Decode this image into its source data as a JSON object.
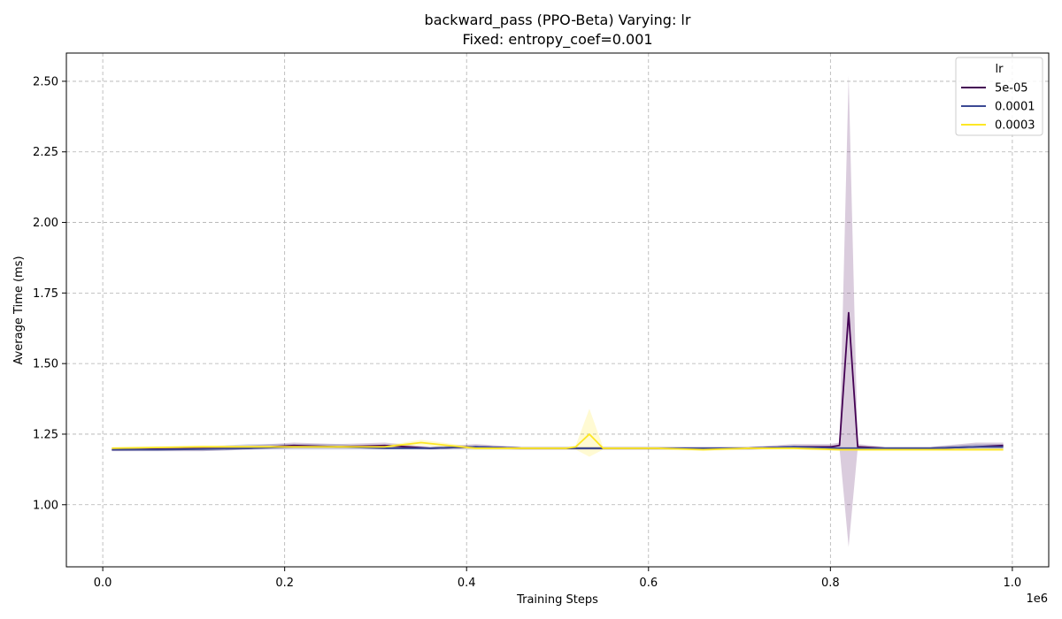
{
  "chart_data": {
    "type": "line",
    "title_line1": "backward_pass (PPO-Beta) Varying: lr",
    "title_line2": "Fixed: entropy_coef=0.001",
    "xlabel": "Training Steps",
    "ylabel": "Average Time (ms)",
    "x_multiplier_label": "1e6",
    "xlim": [
      -0.04,
      1.04
    ],
    "ylim": [
      0.78,
      2.6
    ],
    "x_ticks": [
      0.0,
      0.2,
      0.4,
      0.6,
      0.8,
      1.0
    ],
    "x_tick_labels": [
      "0.0",
      "0.2",
      "0.4",
      "0.6",
      "0.8",
      "1.0"
    ],
    "y_ticks": [
      1.0,
      1.25,
      1.5,
      1.75,
      2.0,
      2.25,
      2.5
    ],
    "y_tick_labels": [
      "1.00",
      "1.25",
      "1.50",
      "1.75",
      "2.00",
      "2.25",
      "2.50"
    ],
    "grid": true,
    "legend": {
      "title": "lr",
      "placement": "top-right"
    },
    "series": [
      {
        "name": "5e-05",
        "color": "#440154",
        "band_color": "#440154",
        "x": [
          0.01,
          0.06,
          0.11,
          0.16,
          0.21,
          0.26,
          0.31,
          0.36,
          0.41,
          0.46,
          0.51,
          0.56,
          0.61,
          0.66,
          0.71,
          0.76,
          0.8,
          0.81,
          0.82,
          0.83,
          0.86,
          0.91,
          0.96,
          0.99
        ],
        "y": [
          1.195,
          1.197,
          1.199,
          1.2,
          1.21,
          1.205,
          1.21,
          1.2,
          1.205,
          1.2,
          1.2,
          1.2,
          1.2,
          1.2,
          1.2,
          1.205,
          1.205,
          1.21,
          1.68,
          1.205,
          1.2,
          1.2,
          1.205,
          1.21
        ],
        "band_lower": [
          1.19,
          1.19,
          1.19,
          1.195,
          1.2,
          1.2,
          1.2,
          1.195,
          1.2,
          1.195,
          1.195,
          1.195,
          1.195,
          1.195,
          1.195,
          1.2,
          1.2,
          1.2,
          0.85,
          1.2,
          1.195,
          1.195,
          1.2,
          1.2
        ],
        "band_upper": [
          1.2,
          1.205,
          1.205,
          1.21,
          1.22,
          1.215,
          1.22,
          1.205,
          1.215,
          1.205,
          1.205,
          1.205,
          1.205,
          1.205,
          1.205,
          1.215,
          1.215,
          1.22,
          2.52,
          1.215,
          1.205,
          1.205,
          1.22,
          1.22
        ]
      },
      {
        "name": "0.0001",
        "color": "#3b4994",
        "band_color": "#3b4994",
        "x": [
          0.01,
          0.06,
          0.11,
          0.16,
          0.21,
          0.26,
          0.31,
          0.36,
          0.41,
          0.46,
          0.51,
          0.56,
          0.61,
          0.66,
          0.71,
          0.76,
          0.81,
          0.86,
          0.91,
          0.96,
          0.99
        ],
        "y": [
          1.195,
          1.195,
          1.197,
          1.2,
          1.205,
          1.205,
          1.2,
          1.2,
          1.205,
          1.2,
          1.2,
          1.2,
          1.2,
          1.2,
          1.2,
          1.205,
          1.2,
          1.2,
          1.2,
          1.205,
          1.205
        ],
        "band_lower": [
          1.19,
          1.19,
          1.19,
          1.195,
          1.195,
          1.195,
          1.195,
          1.195,
          1.195,
          1.195,
          1.195,
          1.195,
          1.195,
          1.195,
          1.195,
          1.2,
          1.195,
          1.195,
          1.195,
          1.195,
          1.195
        ],
        "band_upper": [
          1.2,
          1.2,
          1.205,
          1.215,
          1.215,
          1.215,
          1.205,
          1.205,
          1.21,
          1.205,
          1.205,
          1.205,
          1.205,
          1.205,
          1.205,
          1.21,
          1.205,
          1.205,
          1.205,
          1.215,
          1.215
        ]
      },
      {
        "name": "0.0003",
        "color": "#fde725",
        "band_color": "#fde725",
        "x": [
          0.01,
          0.06,
          0.11,
          0.16,
          0.21,
          0.26,
          0.31,
          0.35,
          0.41,
          0.46,
          0.51,
          0.52,
          0.535,
          0.55,
          0.61,
          0.66,
          0.71,
          0.76,
          0.81,
          0.86,
          0.91,
          0.96,
          0.99
        ],
        "y": [
          1.2,
          1.203,
          1.205,
          1.205,
          1.205,
          1.205,
          1.205,
          1.22,
          1.2,
          1.2,
          1.2,
          1.205,
          1.25,
          1.2,
          1.2,
          1.195,
          1.2,
          1.2,
          1.195,
          1.195,
          1.195,
          1.195,
          1.195
        ],
        "band_lower": [
          1.195,
          1.2,
          1.2,
          1.2,
          1.2,
          1.2,
          1.2,
          1.21,
          1.195,
          1.195,
          1.195,
          1.195,
          1.17,
          1.195,
          1.195,
          1.19,
          1.195,
          1.195,
          1.19,
          1.19,
          1.19,
          1.19,
          1.19
        ],
        "band_upper": [
          1.205,
          1.207,
          1.21,
          1.21,
          1.21,
          1.21,
          1.21,
          1.23,
          1.205,
          1.205,
          1.205,
          1.21,
          1.34,
          1.205,
          1.205,
          1.2,
          1.205,
          1.205,
          1.2,
          1.2,
          1.2,
          1.2,
          1.2
        ]
      }
    ]
  }
}
